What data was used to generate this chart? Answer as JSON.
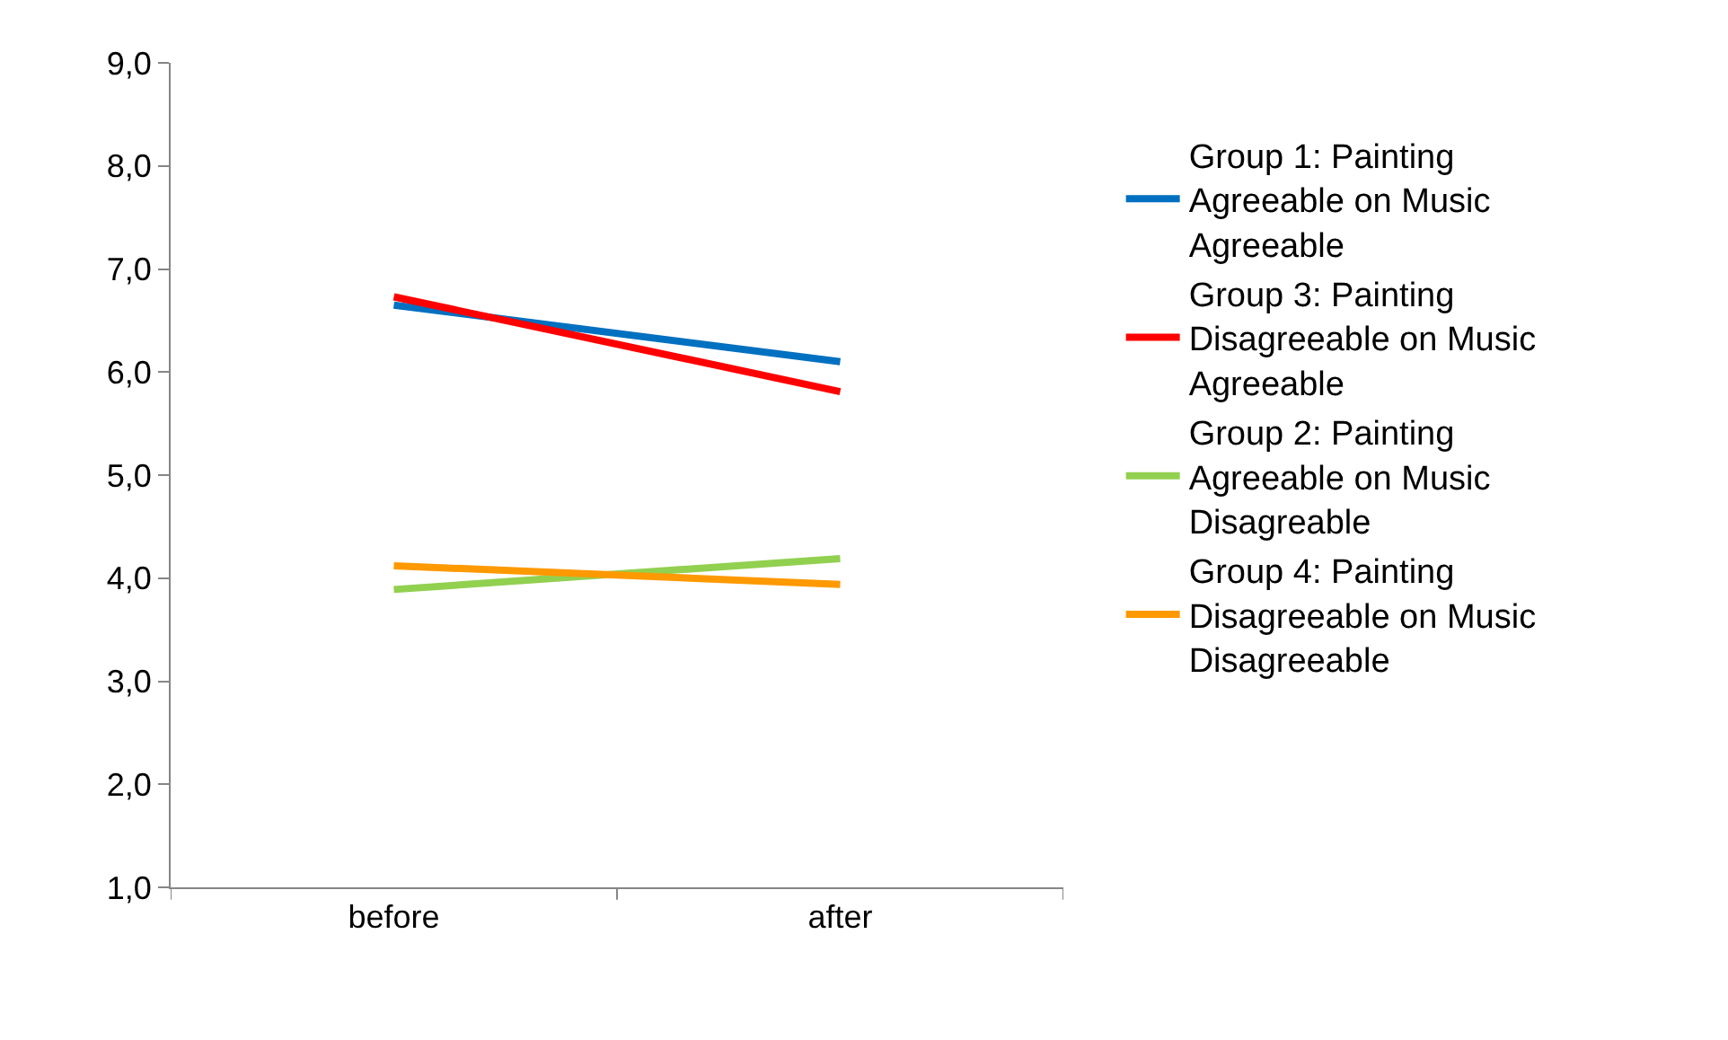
{
  "chart_data": {
    "type": "line",
    "categories": [
      "before",
      "after"
    ],
    "series": [
      {
        "name": "Group 1: Painting Agreeable on Music Agreeable",
        "color": "#0070c0",
        "values": [
          6.65,
          6.1
        ]
      },
      {
        "name": "Group 3: Painting Disagreeable on Music Agreeable",
        "color": "#ff0000",
        "values": [
          6.73,
          5.81
        ]
      },
      {
        "name": "Group 2: Painting Agreeable on Music Disagreable",
        "color": "#92d050",
        "values": [
          3.89,
          4.19
        ]
      },
      {
        "name": "Group 4: Painting Disagreeable on Music Disagreeable",
        "color": "#ff9900",
        "values": [
          4.12,
          3.94
        ]
      }
    ],
    "ylim": [
      1,
      9
    ],
    "yticks": [
      {
        "value": 1,
        "label": "1,0"
      },
      {
        "value": 2,
        "label": "2,0"
      },
      {
        "value": 3,
        "label": "3,0"
      },
      {
        "value": 4,
        "label": "4,0"
      },
      {
        "value": 5,
        "label": "5,0"
      },
      {
        "value": 6,
        "label": "6,0"
      },
      {
        "value": 7,
        "label": "7,0"
      },
      {
        "value": 8,
        "label": "8,0"
      },
      {
        "value": 9,
        "label": "9,0"
      }
    ],
    "legend": "right",
    "marker": "none",
    "line_style": "solid"
  }
}
